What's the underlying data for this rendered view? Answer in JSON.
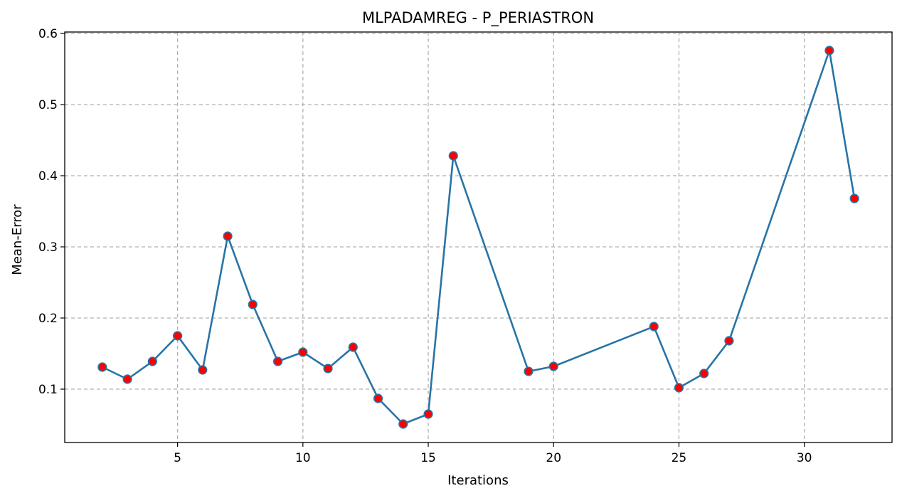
{
  "chart_data": {
    "type": "line",
    "title": "MLPADAMREG - P_PERIASTRON",
    "xlabel": "Iterations",
    "ylabel": "Mean-Error",
    "xlim": [
      0.5,
      33.5
    ],
    "ylim": [
      0.025,
      0.602
    ],
    "x_ticks": [
      5,
      10,
      15,
      20,
      25,
      30
    ],
    "y_ticks": [
      0.1,
      0.2,
      0.3,
      0.4,
      0.5,
      0.6
    ],
    "grid": true,
    "legend": "none",
    "line_color": "#2874a6",
    "marker_fill": "#ff0000",
    "marker_edge": "#2874a6",
    "series": [
      {
        "x": [
          2,
          3,
          4,
          5,
          6,
          7,
          8,
          9,
          10,
          11,
          12,
          13,
          14,
          15,
          16,
          19,
          20,
          24,
          25,
          26,
          27,
          31,
          32
        ],
        "y": [
          0.131,
          0.114,
          0.139,
          0.175,
          0.127,
          0.315,
          0.219,
          0.139,
          0.152,
          0.129,
          0.159,
          0.087,
          0.051,
          0.065,
          0.428,
          0.125,
          0.132,
          0.188,
          0.102,
          0.122,
          0.168,
          0.576,
          0.368
        ]
      }
    ]
  }
}
